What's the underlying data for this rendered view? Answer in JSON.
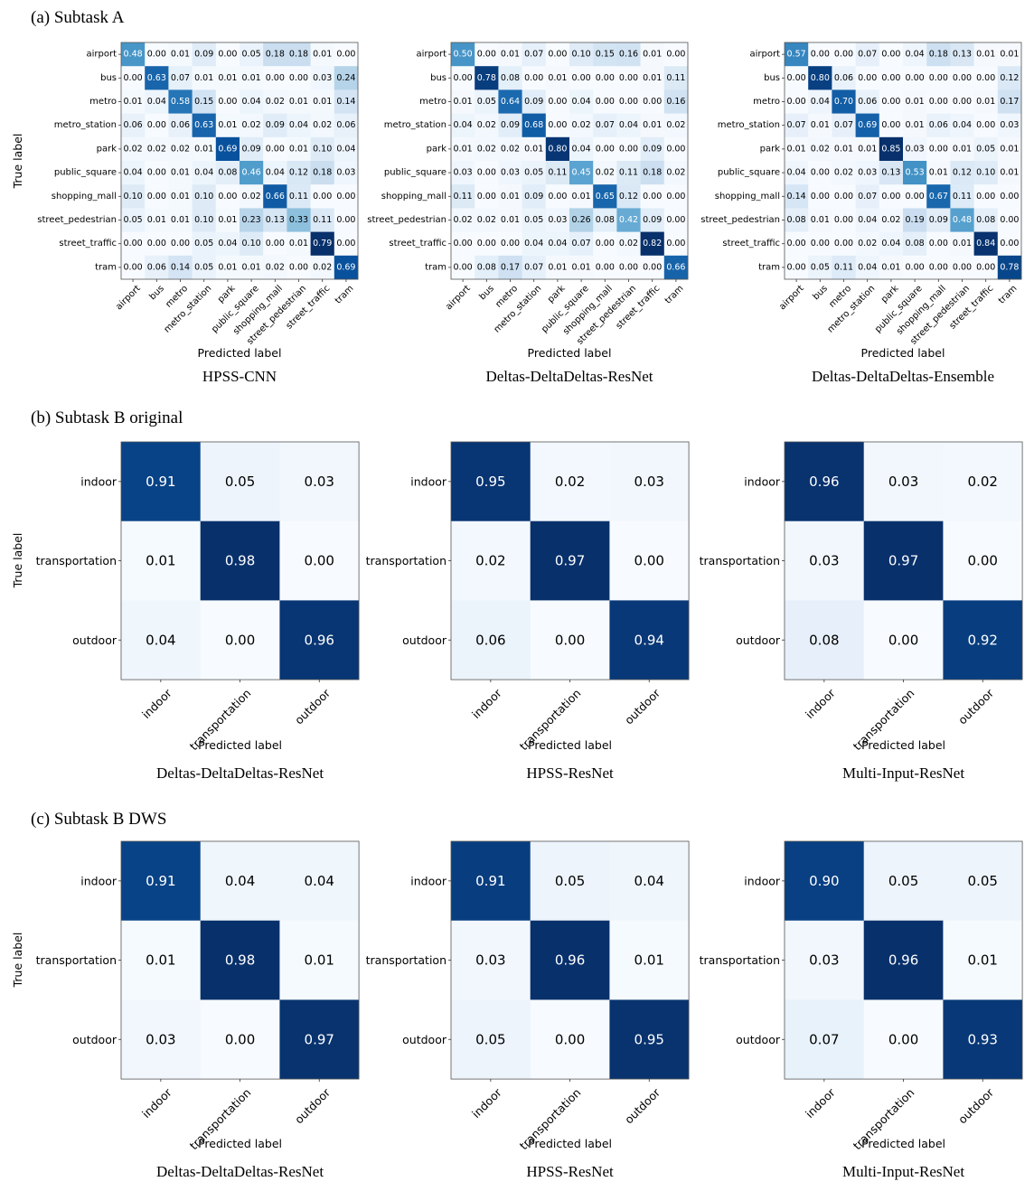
{
  "figure": {
    "sections": [
      {
        "id": "a",
        "label": "(a) Subtask A"
      },
      {
        "id": "b",
        "label": "(b) Subtask B original"
      },
      {
        "id": "c",
        "label": "(c) Subtask B DWS"
      }
    ],
    "xlabel": "Predicted label",
    "ylabel": "True label"
  },
  "chart_data": [
    {
      "type": "heatmap",
      "section": "a",
      "title": "HPSS-CNN",
      "xlabel": "Predicted label",
      "ylabel": "True label",
      "colormap": "Blues",
      "labels": [
        "airport",
        "bus",
        "metro",
        "metro_station",
        "park",
        "public_square",
        "shopping_mall",
        "street_pedestrian",
        "street_traffic",
        "tram"
      ],
      "matrix": [
        [
          "0.48",
          "0.00",
          "0.01",
          "0.09",
          "0.00",
          "0.05",
          "0.18",
          "0.18",
          "0.01",
          "0.00"
        ],
        [
          "0.00",
          "0.63",
          "0.07",
          "0.01",
          "0.01",
          "0.01",
          "0.00",
          "0.00",
          "0.03",
          "0.24"
        ],
        [
          "0.01",
          "0.04",
          "0.58",
          "0.15",
          "0.00",
          "0.04",
          "0.02",
          "0.01",
          "0.01",
          "0.14"
        ],
        [
          "0.06",
          "0.00",
          "0.06",
          "0.63",
          "0.01",
          "0.02",
          "0.09",
          "0.04",
          "0.02",
          "0.06"
        ],
        [
          "0.02",
          "0.02",
          "0.02",
          "0.01",
          "0.69",
          "0.09",
          "0.00",
          "0.01",
          "0.10",
          "0.04"
        ],
        [
          "0.04",
          "0.00",
          "0.01",
          "0.04",
          "0.08",
          "0.46",
          "0.04",
          "0.12",
          "0.18",
          "0.03"
        ],
        [
          "0.10",
          "0.00",
          "0.01",
          "0.10",
          "0.00",
          "0.02",
          "0.66",
          "0.11",
          "0.00",
          "0.00"
        ],
        [
          "0.05",
          "0.01",
          "0.01",
          "0.10",
          "0.01",
          "0.23",
          "0.13",
          "0.33",
          "0.11",
          "0.00"
        ],
        [
          "0.00",
          "0.00",
          "0.00",
          "0.05",
          "0.04",
          "0.10",
          "0.00",
          "0.01",
          "0.79",
          "0.00"
        ],
        [
          "0.00",
          "0.06",
          "0.14",
          "0.05",
          "0.01",
          "0.01",
          "0.02",
          "0.00",
          "0.02",
          "0.69"
        ]
      ]
    },
    {
      "type": "heatmap",
      "section": "a",
      "title": "Deltas-DeltaDeltas-ResNet",
      "xlabel": "Predicted label",
      "ylabel": "",
      "colormap": "Blues",
      "labels": [
        "airport",
        "bus",
        "metro",
        "metro_station",
        "park",
        "public_square",
        "shopping_mall",
        "street_pedestrian",
        "street_traffic",
        "tram"
      ],
      "matrix": [
        [
          "0.50",
          "0.00",
          "0.01",
          "0.07",
          "0.00",
          "0.10",
          "0.15",
          "0.16",
          "0.01",
          "0.00"
        ],
        [
          "0.00",
          "0.78",
          "0.08",
          "0.00",
          "0.01",
          "0.00",
          "0.00",
          "0.00",
          "0.01",
          "0.11"
        ],
        [
          "0.01",
          "0.05",
          "0.64",
          "0.09",
          "0.00",
          "0.04",
          "0.00",
          "0.00",
          "0.00",
          "0.16"
        ],
        [
          "0.04",
          "0.02",
          "0.09",
          "0.68",
          "0.00",
          "0.02",
          "0.07",
          "0.04",
          "0.01",
          "0.02"
        ],
        [
          "0.01",
          "0.02",
          "0.02",
          "0.01",
          "0.80",
          "0.04",
          "0.00",
          "0.00",
          "0.09",
          "0.00"
        ],
        [
          "0.03",
          "0.00",
          "0.03",
          "0.05",
          "0.11",
          "0.45",
          "0.02",
          "0.11",
          "0.18",
          "0.02"
        ],
        [
          "0.11",
          "0.00",
          "0.01",
          "0.09",
          "0.00",
          "0.01",
          "0.65",
          "0.12",
          "0.00",
          "0.00"
        ],
        [
          "0.02",
          "0.02",
          "0.01",
          "0.05",
          "0.03",
          "0.26",
          "0.08",
          "0.42",
          "0.09",
          "0.00"
        ],
        [
          "0.00",
          "0.00",
          "0.00",
          "0.04",
          "0.04",
          "0.07",
          "0.00",
          "0.02",
          "0.82",
          "0.00"
        ],
        [
          "0.00",
          "0.08",
          "0.17",
          "0.07",
          "0.01",
          "0.01",
          "0.00",
          "0.00",
          "0.00",
          "0.66"
        ]
      ]
    },
    {
      "type": "heatmap",
      "section": "a",
      "title": "Deltas-DeltaDeltas-Ensemble",
      "xlabel": "Predicted label",
      "ylabel": "",
      "colormap": "Blues",
      "labels": [
        "airport",
        "bus",
        "metro",
        "metro_station",
        "park",
        "public_square",
        "shopping_mall",
        "street_pedestrian",
        "street_traffic",
        "tram"
      ],
      "matrix": [
        [
          "0.57",
          "0.00",
          "0.00",
          "0.07",
          "0.00",
          "0.04",
          "0.18",
          "0.13",
          "0.01",
          "0.01"
        ],
        [
          "0.00",
          "0.80",
          "0.06",
          "0.00",
          "0.00",
          "0.00",
          "0.00",
          "0.00",
          "0.00",
          "0.12"
        ],
        [
          "0.00",
          "0.04",
          "0.70",
          "0.06",
          "0.00",
          "0.01",
          "0.00",
          "0.00",
          "0.01",
          "0.17"
        ],
        [
          "0.07",
          "0.01",
          "0.07",
          "0.69",
          "0.00",
          "0.01",
          "0.06",
          "0.04",
          "0.00",
          "0.03"
        ],
        [
          "0.01",
          "0.02",
          "0.01",
          "0.01",
          "0.85",
          "0.03",
          "0.00",
          "0.01",
          "0.05",
          "0.01"
        ],
        [
          "0.04",
          "0.00",
          "0.02",
          "0.03",
          "0.13",
          "0.53",
          "0.01",
          "0.12",
          "0.10",
          "0.01"
        ],
        [
          "0.14",
          "0.00",
          "0.00",
          "0.07",
          "0.00",
          "0.00",
          "0.67",
          "0.11",
          "0.00",
          "0.00"
        ],
        [
          "0.08",
          "0.01",
          "0.00",
          "0.04",
          "0.02",
          "0.19",
          "0.09",
          "0.48",
          "0.08",
          "0.00"
        ],
        [
          "0.00",
          "0.00",
          "0.00",
          "0.02",
          "0.04",
          "0.08",
          "0.00",
          "0.01",
          "0.84",
          "0.00"
        ],
        [
          "0.00",
          "0.05",
          "0.11",
          "0.04",
          "0.01",
          "0.00",
          "0.00",
          "0.00",
          "0.00",
          "0.78"
        ]
      ]
    },
    {
      "type": "heatmap",
      "section": "b",
      "title": "Deltas-DeltaDeltas-ResNet",
      "xlabel": "Predicted label",
      "ylabel": "True label",
      "colormap": "Blues",
      "labels": [
        "indoor",
        "transportation",
        "outdoor"
      ],
      "matrix": [
        [
          "0.91",
          "0.05",
          "0.03"
        ],
        [
          "0.01",
          "0.98",
          "0.00"
        ],
        [
          "0.04",
          "0.00",
          "0.96"
        ]
      ]
    },
    {
      "type": "heatmap",
      "section": "b",
      "title": "HPSS-ResNet",
      "xlabel": "Predicted label",
      "ylabel": "",
      "colormap": "Blues",
      "labels": [
        "indoor",
        "transportation",
        "outdoor"
      ],
      "matrix": [
        [
          "0.95",
          "0.02",
          "0.03"
        ],
        [
          "0.02",
          "0.97",
          "0.00"
        ],
        [
          "0.06",
          "0.00",
          "0.94"
        ]
      ]
    },
    {
      "type": "heatmap",
      "section": "b",
      "title": "Multi-Input-ResNet",
      "xlabel": "Predicted label",
      "ylabel": "",
      "colormap": "Blues",
      "labels": [
        "indoor",
        "transportation",
        "outdoor"
      ],
      "matrix": [
        [
          "0.96",
          "0.03",
          "0.02"
        ],
        [
          "0.03",
          "0.97",
          "0.00"
        ],
        [
          "0.08",
          "0.00",
          "0.92"
        ]
      ]
    },
    {
      "type": "heatmap",
      "section": "c",
      "title": "Deltas-DeltaDeltas-ResNet",
      "xlabel": "Predicted label",
      "ylabel": "True label",
      "colormap": "Blues",
      "labels": [
        "indoor",
        "transportation",
        "outdoor"
      ],
      "matrix": [
        [
          "0.91",
          "0.04",
          "0.04"
        ],
        [
          "0.01",
          "0.98",
          "0.01"
        ],
        [
          "0.03",
          "0.00",
          "0.97"
        ]
      ]
    },
    {
      "type": "heatmap",
      "section": "c",
      "title": "HPSS-ResNet",
      "xlabel": "Predicted label",
      "ylabel": "",
      "colormap": "Blues",
      "labels": [
        "indoor",
        "transportation",
        "outdoor"
      ],
      "matrix": [
        [
          "0.91",
          "0.05",
          "0.04"
        ],
        [
          "0.03",
          "0.96",
          "0.01"
        ],
        [
          "0.05",
          "0.00",
          "0.95"
        ]
      ]
    },
    {
      "type": "heatmap",
      "section": "c",
      "title": "Multi-Input-ResNet",
      "xlabel": "Predicted label",
      "ylabel": "",
      "colormap": "Blues",
      "labels": [
        "indoor",
        "transportation",
        "outdoor"
      ],
      "matrix": [
        [
          "0.90",
          "0.05",
          "0.05"
        ],
        [
          "0.03",
          "0.96",
          "0.01"
        ],
        [
          "0.07",
          "0.00",
          "0.93"
        ]
      ]
    }
  ]
}
